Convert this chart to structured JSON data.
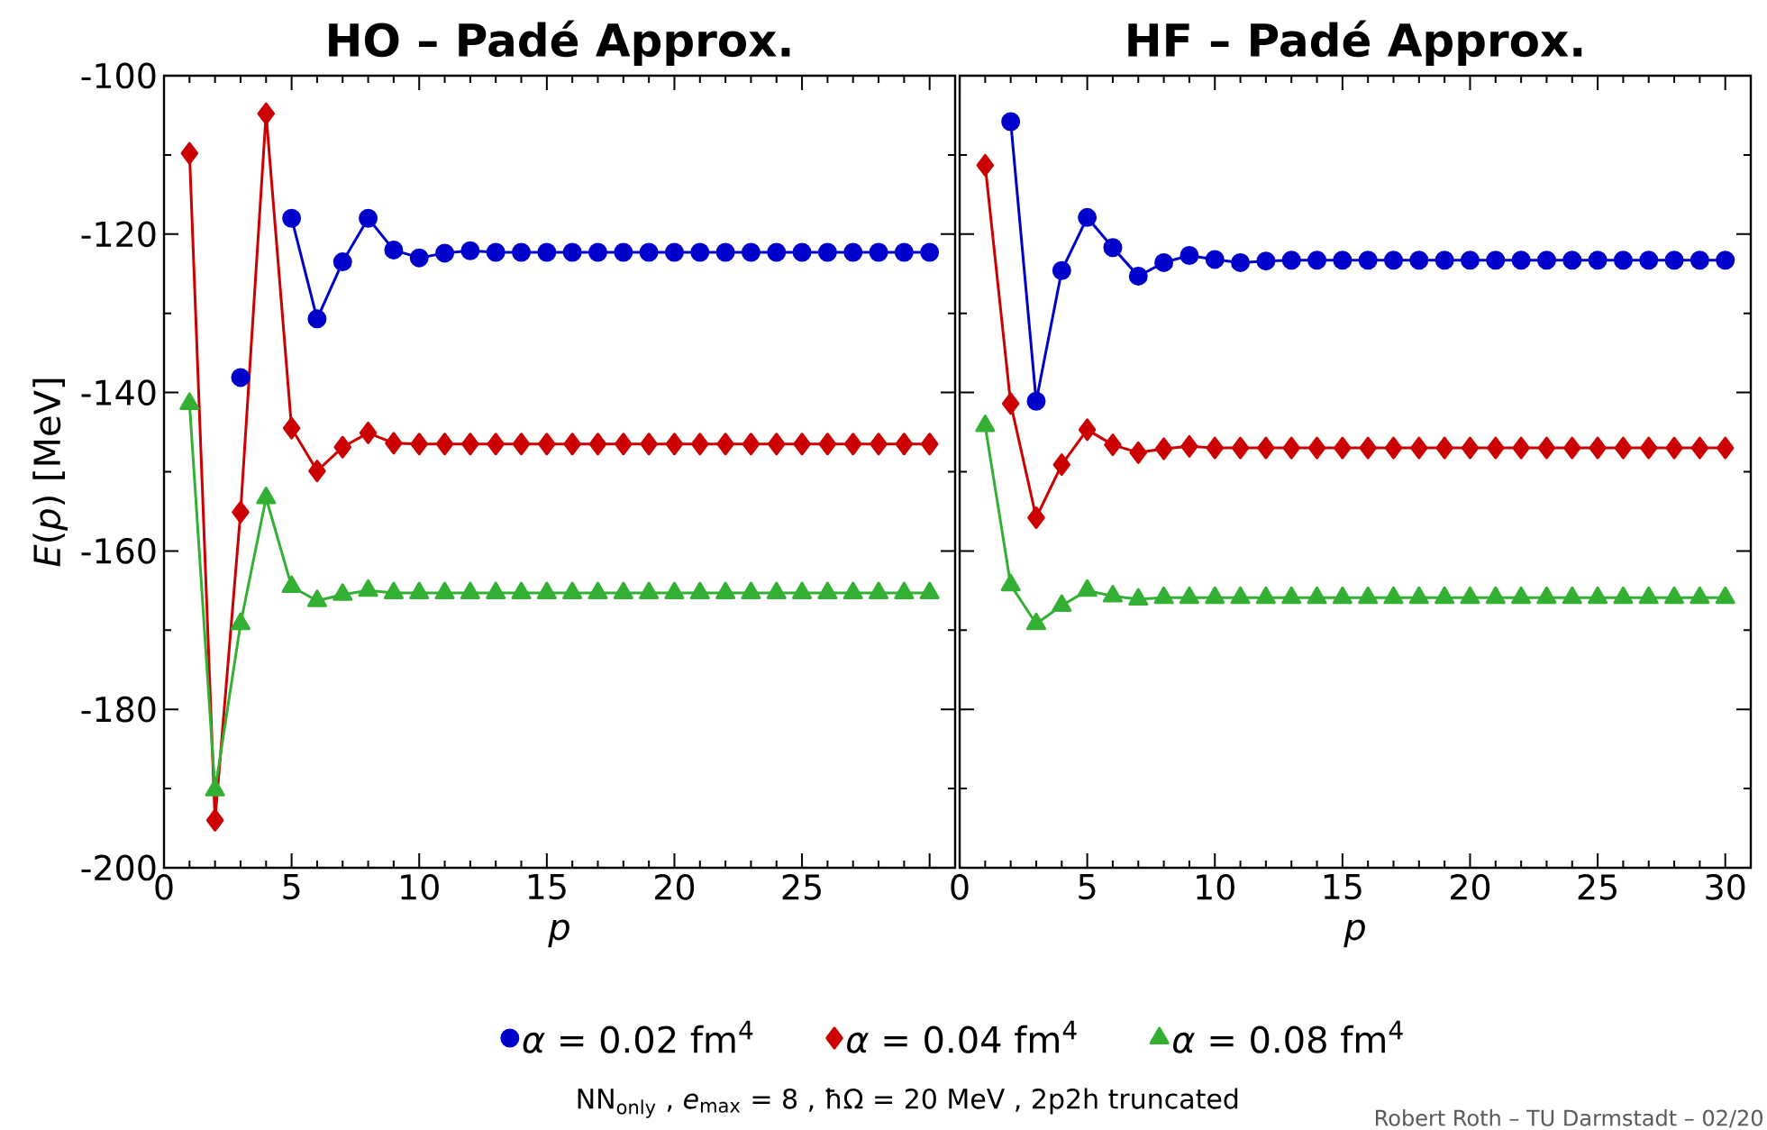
{
  "chart_data": [
    {
      "type": "line",
      "title": "HO – Padé Approx.",
      "xlabel": "p",
      "ylabel": "*E*(*p*)  [MeV]",
      "x": [
        1,
        2,
        3,
        4,
        5,
        6,
        7,
        8,
        9,
        10,
        11,
        12,
        13,
        14,
        15,
        16,
        17,
        18,
        19,
        20,
        21,
        22,
        23,
        24,
        25,
        26,
        27,
        28,
        29,
        30
      ],
      "xlim": [
        0,
        31
      ],
      "ylim": [
        -200,
        -100
      ],
      "xticks": [
        0,
        5,
        10,
        15,
        20,
        25,
        {
          "value": 30,
          "label": null
        }
      ],
      "yticks": [
        -200,
        -180,
        -160,
        -140,
        -120,
        -100
      ],
      "line_style": "solid",
      "legend": "bottom",
      "series": [
        {
          "name": "*α* = 0.02 fm$^{4}$",
          "color": "#0000cc",
          "marker": "circle",
          "values": [
            null,
            null,
            -138.1,
            null,
            -118.0,
            -130.7,
            -123.5,
            -118.0,
            -122.0,
            -123.0,
            -122.4,
            -122.1,
            -122.3,
            -122.3,
            -122.3,
            -122.3,
            -122.3,
            -122.3,
            -122.3,
            -122.3,
            -122.3,
            -122.3,
            -122.3,
            -122.3,
            -122.3,
            -122.3,
            -122.3,
            -122.3,
            -122.3,
            -122.3
          ]
        },
        {
          "name": "*α* = 0.04 fm$^{4}$",
          "color": "#cc0000",
          "marker": "diamond",
          "values": [
            -109.8,
            -194.0,
            -155.1,
            -104.8,
            -144.5,
            -149.9,
            -146.9,
            -145.1,
            -146.4,
            -146.5,
            -146.5,
            -146.5,
            -146.5,
            -146.5,
            -146.5,
            -146.5,
            -146.5,
            -146.5,
            -146.5,
            -146.5,
            -146.5,
            -146.5,
            -146.5,
            -146.5,
            -146.5,
            -146.5,
            -146.5,
            -146.5,
            -146.5,
            -146.5
          ]
        },
        {
          "name": "*α* = 0.08 fm$^{4}$",
          "color": "#33b033",
          "marker": "triangle",
          "values": [
            -141.4,
            -190.2,
            -169.2,
            -153.3,
            -164.5,
            -166.3,
            -165.5,
            -165.0,
            -165.3,
            -165.3,
            -165.3,
            -165.3,
            -165.3,
            -165.3,
            -165.3,
            -165.3,
            -165.3,
            -165.3,
            -165.3,
            -165.3,
            -165.3,
            -165.3,
            -165.3,
            -165.3,
            -165.3,
            -165.3,
            -165.3,
            -165.3,
            -165.3,
            -165.3
          ]
        }
      ],
      "annotations": [
        "NN$_{only}$   ,   *e*$_{max}$ = 8   ,   ħΩ = 20 MeV   ,   2p2h truncated",
        "Robert Roth – TU Darmstadt – 02/20"
      ]
    },
    {
      "type": "line",
      "title": "HF – Padé Approx.",
      "xlabel": "p",
      "x": [
        1,
        2,
        3,
        4,
        5,
        6,
        7,
        8,
        9,
        10,
        11,
        12,
        13,
        14,
        15,
        16,
        17,
        18,
        19,
        20,
        21,
        22,
        23,
        24,
        25,
        26,
        27,
        28,
        29,
        30
      ],
      "xlim": [
        0,
        31
      ],
      "ylim": [
        -200,
        -100
      ],
      "xticks": [
        0,
        5,
        10,
        15,
        20,
        25,
        30
      ],
      "yticks": [
        -200,
        -180,
        -160,
        -140,
        -120,
        -100
      ],
      "tick_labels": "x",
      "line_style": "solid",
      "series": [
        {
          "color": "#0000cc",
          "marker": "circle",
          "values": [
            null,
            -105.8,
            -141.1,
            -124.6,
            -117.9,
            -121.7,
            -125.3,
            -123.6,
            -122.7,
            -123.2,
            -123.6,
            -123.4,
            -123.3,
            -123.3,
            -123.3,
            -123.3,
            -123.3,
            -123.3,
            -123.3,
            -123.3,
            -123.3,
            -123.3,
            -123.3,
            -123.3,
            -123.3,
            -123.3,
            -123.3,
            -123.3,
            -123.3,
            -123.3
          ]
        },
        {
          "color": "#cc0000",
          "marker": "diamond",
          "values": [
            -111.3,
            -141.4,
            -155.8,
            -149.1,
            -144.7,
            -146.6,
            -147.6,
            -147.1,
            -146.8,
            -147.0,
            -147.0,
            -147.0,
            -147.0,
            -147.0,
            -147.0,
            -147.0,
            -147.0,
            -147.0,
            -147.0,
            -147.0,
            -147.0,
            -147.0,
            -147.0,
            -147.0,
            -147.0,
            -147.0,
            -147.0,
            -147.0,
            -147.0,
            -147.0
          ]
        },
        {
          "color": "#33b033",
          "marker": "triangle",
          "values": [
            -144.2,
            -164.3,
            -169.2,
            -166.9,
            -165.0,
            -165.7,
            -166.1,
            -165.9,
            -165.9,
            -165.9,
            -165.9,
            -165.9,
            -165.9,
            -165.9,
            -165.9,
            -165.9,
            -165.9,
            -165.9,
            -165.9,
            -165.9,
            -165.9,
            -165.9,
            -165.9,
            -165.9,
            -165.9,
            -165.9,
            -165.9,
            -165.9,
            -165.9,
            -165.9
          ]
        }
      ]
    }
  ]
}
